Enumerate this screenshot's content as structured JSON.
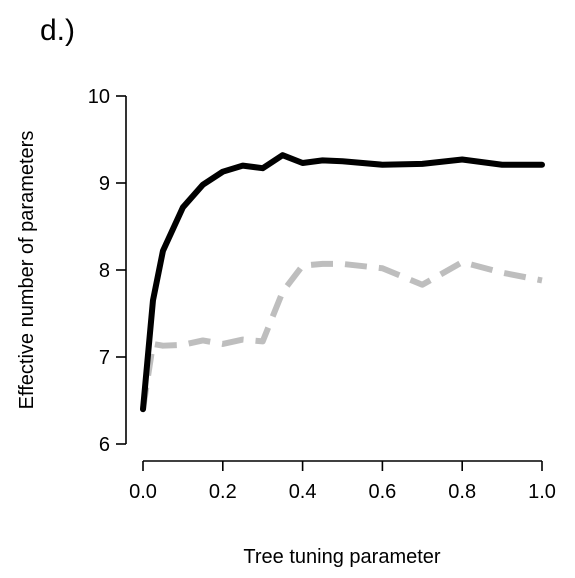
{
  "chart_data": {
    "type": "line",
    "panel_label": "d.)",
    "title": "",
    "xlabel": "Tree tuning parameter",
    "ylabel": "Effective number of parameters",
    "xlim": [
      0,
      1
    ],
    "ylim": [
      6,
      10
    ],
    "xticks": [
      0.0,
      0.2,
      0.4,
      0.6,
      0.8,
      1.0
    ],
    "xtick_labels": [
      "0.0",
      "0.2",
      "0.4",
      "0.6",
      "0.8",
      "1.0"
    ],
    "yticks": [
      6,
      7,
      8,
      9,
      10
    ],
    "ytick_labels": [
      "6",
      "7",
      "8",
      "9",
      "10"
    ],
    "grid": false,
    "legend": "none",
    "series": [
      {
        "color": "#000000",
        "style": "solid",
        "x": [
          0.0,
          0.025,
          0.05,
          0.1,
          0.15,
          0.2,
          0.25,
          0.3,
          0.35,
          0.4,
          0.45,
          0.5,
          0.6,
          0.7,
          0.8,
          0.9,
          1.0
        ],
        "y": [
          6.4,
          7.65,
          8.22,
          8.72,
          8.98,
          9.13,
          9.2,
          9.17,
          9.32,
          9.23,
          9.26,
          9.25,
          9.21,
          9.22,
          9.27,
          9.21,
          9.21
        ]
      },
      {
        "color": "#bebebe",
        "style": "dashed",
        "x": [
          0.0,
          0.025,
          0.05,
          0.1,
          0.15,
          0.2,
          0.25,
          0.3,
          0.35,
          0.4,
          0.45,
          0.5,
          0.6,
          0.7,
          0.8,
          0.9,
          1.0
        ],
        "y": [
          6.4,
          7.15,
          7.13,
          7.14,
          7.19,
          7.15,
          7.2,
          7.18,
          7.75,
          8.05,
          8.07,
          8.07,
          8.02,
          7.83,
          8.09,
          7.97,
          7.88
        ]
      }
    ]
  }
}
